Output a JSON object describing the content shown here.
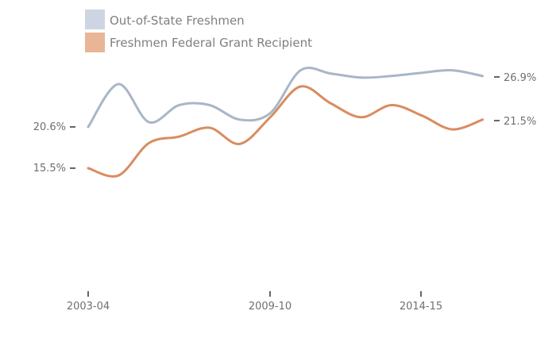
{
  "chart_data": {
    "type": "line",
    "x_tick_labels": [
      "2003-04",
      "2009-10",
      "2014-15"
    ],
    "x": [
      "2003-04",
      "2004-05",
      "2005-06",
      "2006-07",
      "2007-08",
      "2008-09",
      "2009-10",
      "2010-11",
      "2011-12",
      "2012-13",
      "2013-14",
      "2014-15",
      "2015-16",
      "2016-17"
    ],
    "series": [
      {
        "name": "Out-of-State Freshmen",
        "color": "#a8b6c8",
        "values": [
          20.6,
          25.9,
          21.2,
          23.3,
          23.3,
          21.5,
          22.3,
          27.6,
          27.2,
          26.7,
          26.9,
          27.3,
          27.6,
          26.9
        ],
        "end_label": "26.9%"
      },
      {
        "name": "Freshmen Federal Grant Recipient",
        "color": "#d98c5f",
        "values": [
          15.5,
          14.6,
          18.6,
          19.4,
          20.5,
          18.5,
          21.8,
          25.6,
          23.5,
          21.8,
          23.3,
          22.0,
          20.3,
          21.5
        ],
        "end_label": "21.5%"
      }
    ],
    "y_left_labels": [
      {
        "value": 20.6,
        "text": "20.6%"
      },
      {
        "value": 15.5,
        "text": "15.5%"
      }
    ],
    "ylim": [
      0,
      30
    ]
  }
}
